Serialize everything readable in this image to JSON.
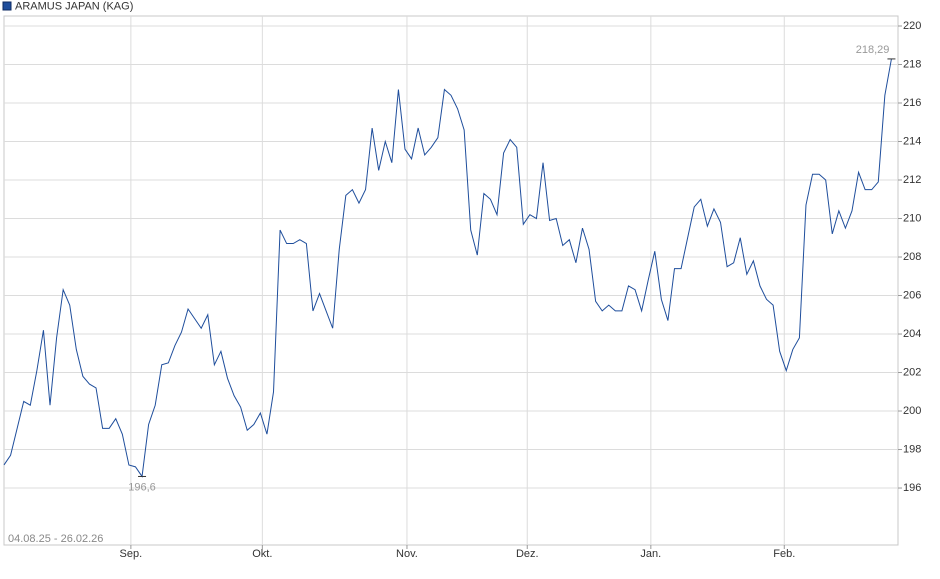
{
  "chart_data": {
    "type": "line",
    "series": [
      {
        "name": "ARAMUS JAPAN (KAG)",
        "color": "#1f4e9c",
        "values": [
          197.2,
          197.7,
          199.1,
          200.5,
          200.3,
          202.1,
          204.2,
          200.3,
          203.8,
          206.3,
          205.5,
          203.2,
          201.8,
          201.4,
          201.2,
          199.1,
          199.1,
          199.6,
          198.8,
          197.2,
          197.1,
          196.6,
          199.3,
          200.3,
          202.4,
          202.5,
          203.4,
          204.1,
          205.3,
          204.8,
          204.3,
          205.0,
          202.4,
          203.1,
          201.7,
          200.8,
          200.2,
          199.0,
          199.3,
          199.9,
          198.8,
          201.0,
          209.4,
          208.7,
          208.7,
          208.9,
          208.7,
          205.2,
          206.1,
          205.2,
          204.3,
          208.4,
          211.2,
          211.5,
          210.8,
          211.5,
          214.7,
          212.5,
          214.0,
          212.9,
          216.7,
          213.6,
          213.1,
          214.7,
          213.3,
          213.7,
          214.2,
          216.7,
          216.4,
          215.7,
          214.6,
          209.4,
          208.1,
          211.3,
          211.0,
          210.2,
          213.4,
          214.1,
          213.7,
          209.7,
          210.2,
          210.0,
          212.9,
          209.9,
          210.0,
          208.6,
          208.9,
          207.7,
          209.5,
          208.4,
          205.7,
          205.2,
          205.5,
          205.2,
          205.2,
          206.5,
          206.3,
          205.2,
          206.8,
          208.3,
          205.8,
          204.7,
          207.4,
          207.4,
          209.0,
          210.6,
          211.0,
          209.6,
          210.5,
          209.8,
          207.5,
          207.7,
          209.0,
          207.1,
          207.8,
          206.5,
          205.8,
          205.5,
          203.1,
          202.1,
          203.2,
          203.8,
          210.7,
          212.3,
          212.3,
          212.0,
          209.2,
          210.4,
          209.5,
          210.4,
          212.4,
          211.5,
          211.5,
          211.9,
          216.4,
          218.29
        ]
      }
    ],
    "min_label": {
      "value": 196.6,
      "label": "196,6"
    },
    "last_label": {
      "value": 218.29,
      "label": "218,29"
    },
    "date_range": "04.08.25 - 26.02.26",
    "xlim": [
      0,
      136
    ],
    "xticks": [
      {
        "value": 19.3,
        "label": "Sep."
      },
      {
        "value": 39.3,
        "label": "Okt."
      },
      {
        "value": 61.3,
        "label": "Nov."
      },
      {
        "value": 79.6,
        "label": "Dez."
      },
      {
        "value": 98.4,
        "label": "Jan."
      },
      {
        "value": 118.7,
        "label": "Feb."
      }
    ],
    "ylim": [
      193.04,
      220.52
    ],
    "yticks": [
      196,
      198,
      200,
      202,
      204,
      206,
      208,
      210,
      212,
      214,
      216,
      218,
      220
    ],
    "grid": true
  }
}
